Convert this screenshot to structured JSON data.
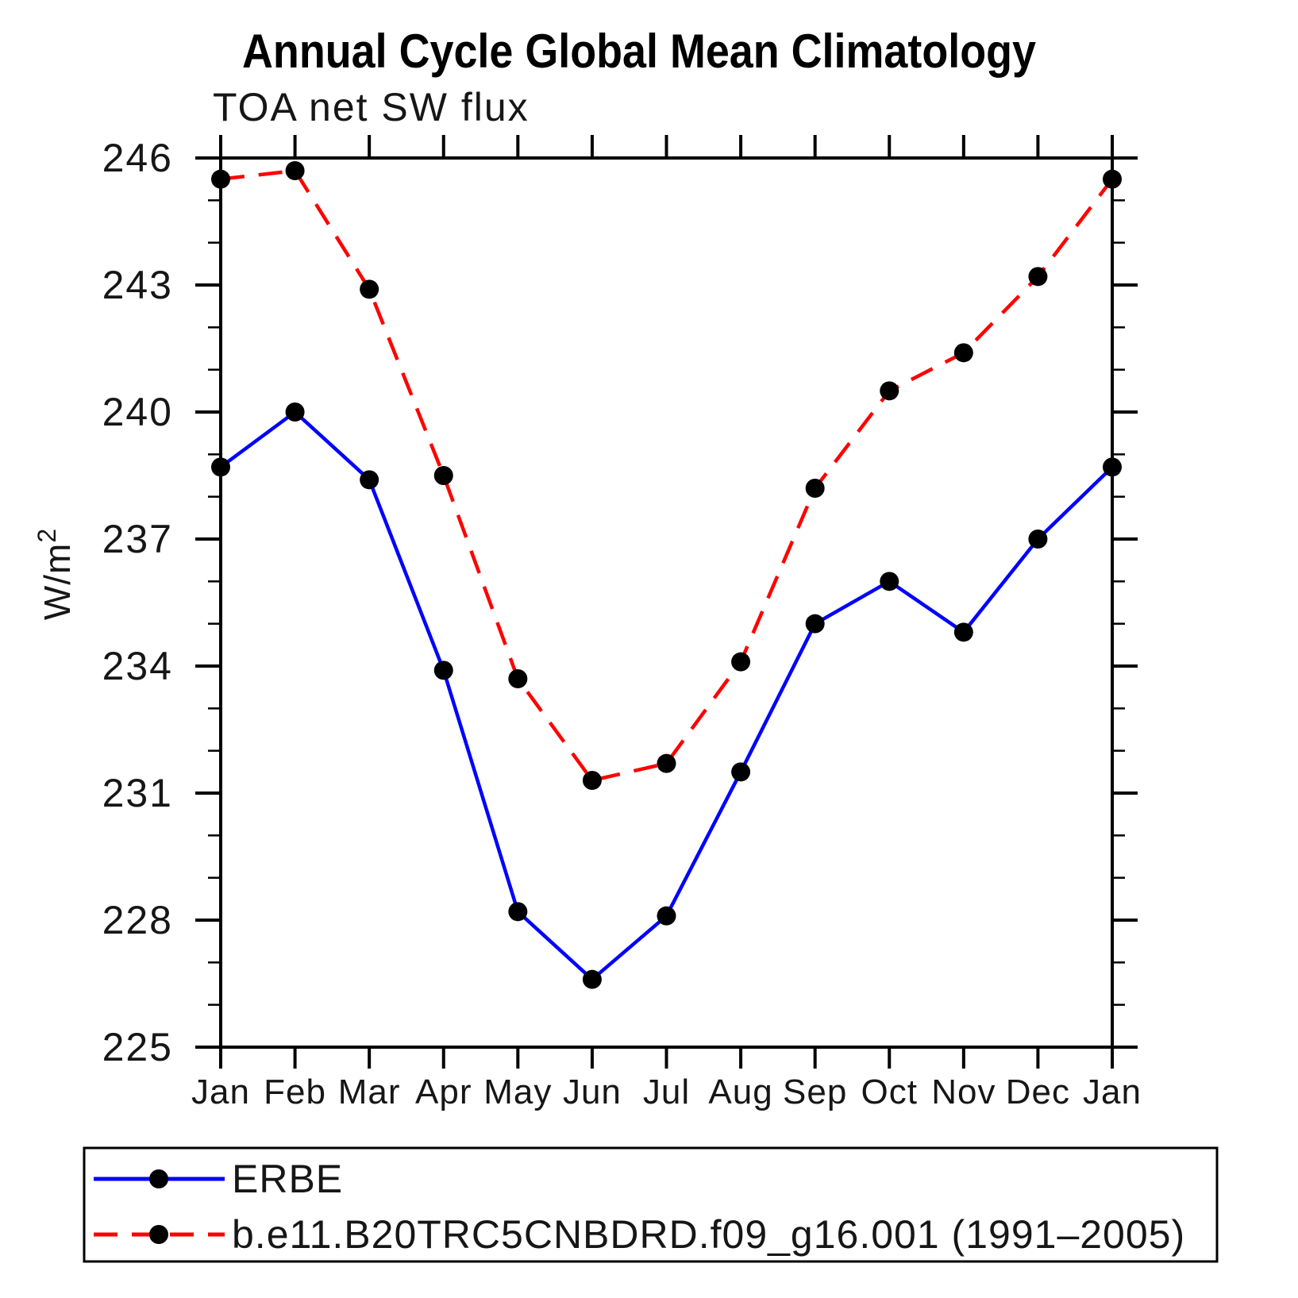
{
  "chart_data": {
    "type": "line",
    "title": "Annual Cycle Global Mean Climatology",
    "subtitle": "TOA net SW flux",
    "ylabel": "W/m²",
    "ylabel_base": "W/m",
    "ylabel_exp": "2",
    "xlabel": "",
    "categories": [
      "Jan",
      "Feb",
      "Mar",
      "Apr",
      "May",
      "Jun",
      "Jul",
      "Aug",
      "Sep",
      "Oct",
      "Nov",
      "Dec",
      "Jan"
    ],
    "series": [
      {
        "name": "ERBE",
        "color": "#0000ff",
        "line_style": "solid",
        "marker": "filled-circle",
        "marker_color": "#000000",
        "values": [
          238.7,
          240.0,
          238.4,
          233.9,
          228.2,
          226.6,
          228.1,
          231.5,
          235.0,
          236.0,
          234.8,
          237.0,
          238.7
        ]
      },
      {
        "name": "b.e11.B20TRC5CNBDRD.f09_g16.001 (1991–2005)",
        "color": "#ff0000",
        "line_style": "dashed",
        "marker": "filled-circle",
        "marker_color": "#000000",
        "values": [
          245.5,
          245.7,
          242.9,
          238.5,
          233.7,
          231.3,
          231.7,
          234.1,
          238.2,
          240.5,
          241.4,
          243.2,
          245.5
        ]
      }
    ],
    "ylim": [
      225,
      246
    ],
    "y_major_ticks": [
      225,
      228,
      231,
      234,
      237,
      240,
      243,
      246
    ],
    "y_minor_step": 1,
    "grid": false,
    "legend_position": "bottom-left-box",
    "axis_color": "#000000",
    "background_color": "#ffffff"
  }
}
